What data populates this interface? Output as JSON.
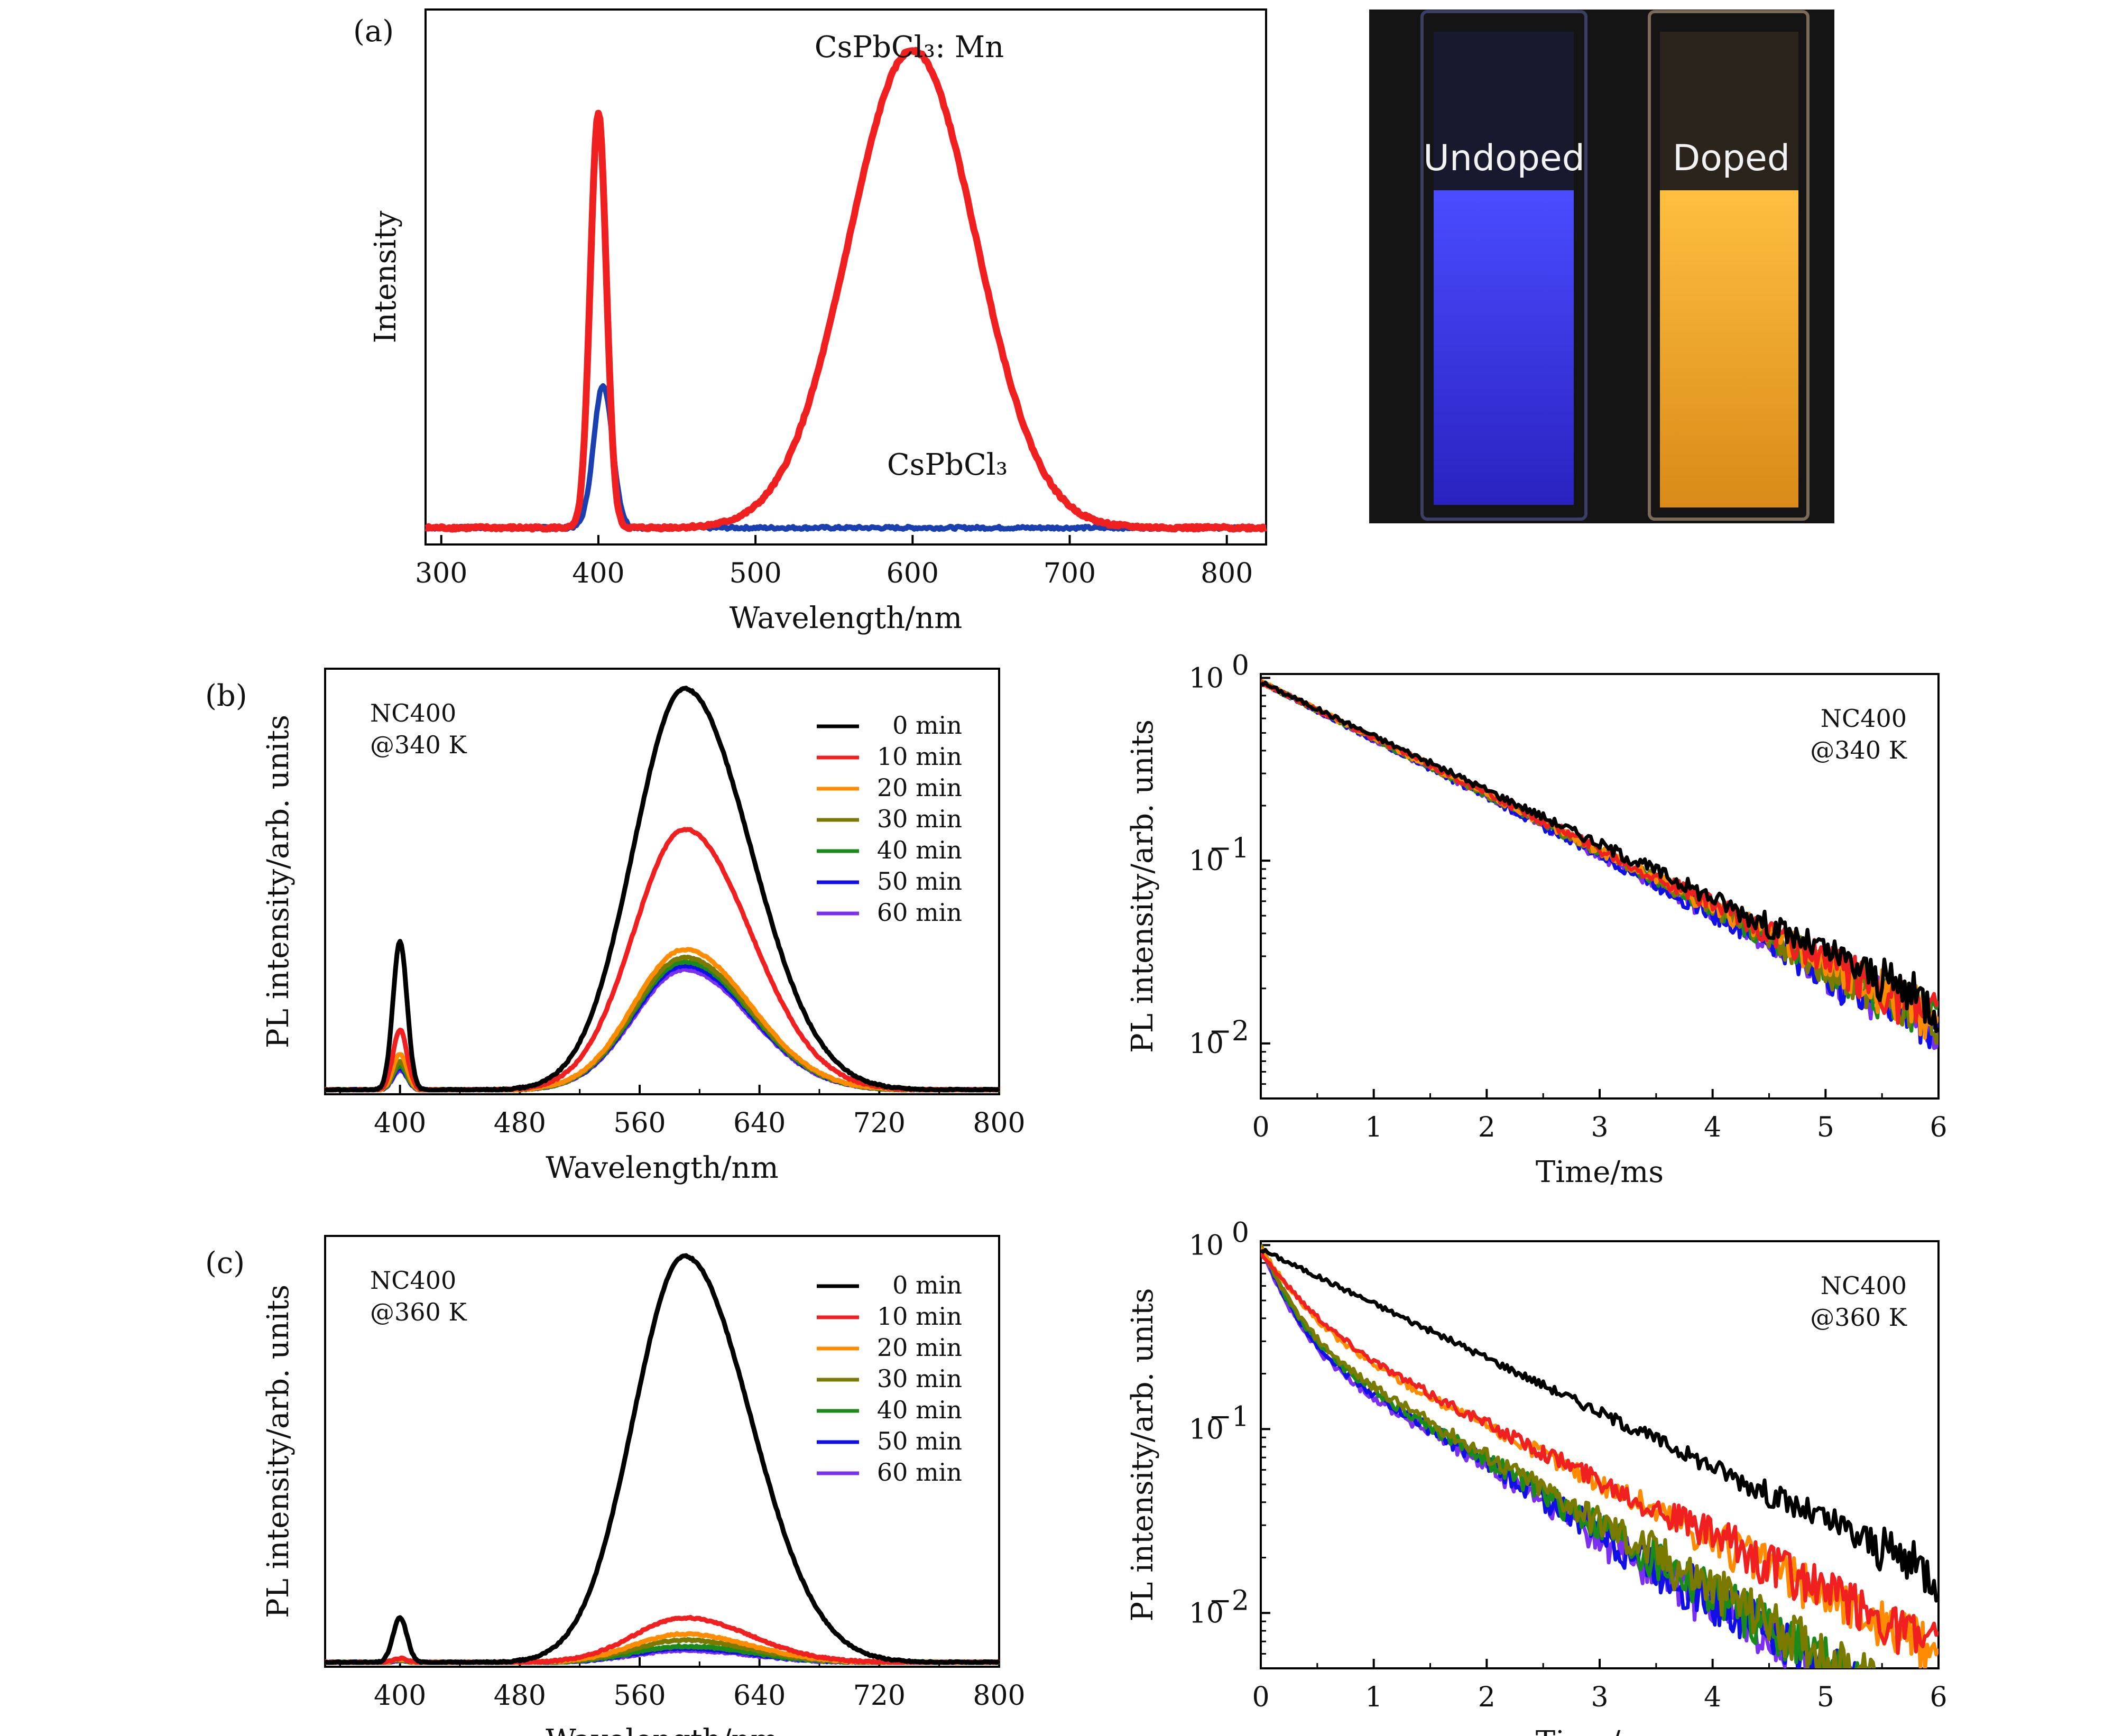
{
  "panel_labels": {
    "a": "(a)",
    "b": "(b)",
    "c": "(c)"
  },
  "photo": {
    "undoped_label": "Undoped",
    "doped_label": "Doped",
    "undoped_color": "#3b3cf0",
    "doped_color": "#f2a22a"
  },
  "common": {
    "series_names": [
      "0 min",
      "10 min",
      "20 min",
      "30 min",
      "40 min",
      "50 min",
      "60 min"
    ],
    "series_colors": [
      "#000000",
      "#f02020",
      "#ff8c00",
      "#7a7a00",
      "#1a8a1a",
      "#1010e6",
      "#7b2ff0"
    ]
  },
  "chart_data": [
    {
      "id": "a",
      "type": "line",
      "xlabel": "Wavelength/nm",
      "ylabel": "Intensity",
      "xlim": [
        290,
        825
      ],
      "ylim": [
        0,
        1.1
      ],
      "xticks": [
        "300",
        "400",
        "500",
        "600",
        "700",
        "800"
      ],
      "annotations": {
        "doped": "CsPbCl₃: Mn",
        "undoped": "CsPbCl₃"
      },
      "series": [
        {
          "name": "CsPbCl₃: Mn",
          "color": "#f02020",
          "peaks": [
            {
              "center": 400,
              "fwhm": 12,
              "height": 0.87
            },
            {
              "center": 600,
              "fwhm": 95,
              "height": 1.0
            }
          ]
        },
        {
          "name": "CsPbCl₃",
          "color": "#1a3fb0",
          "peaks": [
            {
              "center": 403,
              "fwhm": 14,
              "height": 0.3
            }
          ]
        }
      ]
    },
    {
      "id": "b_pl",
      "type": "line",
      "xlabel": "Wavelength/nm",
      "ylabel": "PL intensity/arb. units",
      "xlim": [
        350,
        800
      ],
      "ylim": [
        0,
        1.05
      ],
      "xticks": [
        "400",
        "480",
        "560",
        "640",
        "720",
        "800"
      ],
      "annotation": [
        "NC400",
        "@340 K"
      ],
      "series": [
        {
          "name": "0 min",
          "peak400": 0.37,
          "peak590": 1.0
        },
        {
          "name": "10 min",
          "peak400": 0.15,
          "peak590": 0.65
        },
        {
          "name": "20 min",
          "peak400": 0.09,
          "peak590": 0.35
        },
        {
          "name": "30 min",
          "peak400": 0.07,
          "peak590": 0.33
        },
        {
          "name": "40 min",
          "peak400": 0.06,
          "peak590": 0.32
        },
        {
          "name": "50 min",
          "peak400": 0.055,
          "peak590": 0.31
        },
        {
          "name": "60 min",
          "peak400": 0.05,
          "peak590": 0.3
        }
      ]
    },
    {
      "id": "b_decay",
      "type": "line",
      "xlabel": "Time/ms",
      "ylabel": "PL intensity/arb. units",
      "xlim": [
        0,
        6
      ],
      "ylim": [
        0.005,
        1.05
      ],
      "yscale": "log",
      "xticks": [
        "0",
        "1",
        "2",
        "3",
        "4",
        "5",
        "6"
      ],
      "annotation": [
        "NC400",
        "@340 K"
      ],
      "series": [
        {
          "name": "0 min",
          "end_value_6ms": 0.017
        },
        {
          "name": "10 min",
          "end_value_6ms": 0.015
        },
        {
          "name": "20 min",
          "end_value_6ms": 0.0145
        },
        {
          "name": "30 min",
          "end_value_6ms": 0.014
        },
        {
          "name": "40 min",
          "end_value_6ms": 0.014
        },
        {
          "name": "50 min",
          "end_value_6ms": 0.013
        },
        {
          "name": "60 min",
          "end_value_6ms": 0.013
        }
      ]
    },
    {
      "id": "c_pl",
      "type": "line",
      "xlabel": "Wavelength/nm",
      "ylabel": "PL intensity/arb. units",
      "xlim": [
        350,
        800
      ],
      "ylim": [
        0,
        1.05
      ],
      "xticks": [
        "400",
        "480",
        "560",
        "640",
        "720",
        "800"
      ],
      "annotation": [
        "NC400",
        "@360 K"
      ],
      "series": [
        {
          "name": "0 min",
          "peak400": 0.11,
          "peak590": 1.0
        },
        {
          "name": "10 min",
          "peak400": 0.01,
          "peak590": 0.11
        },
        {
          "name": "20 min",
          "peak400": 0.008,
          "peak590": 0.07
        },
        {
          "name": "30 min",
          "peak400": 0.007,
          "peak590": 0.055
        },
        {
          "name": "40 min",
          "peak400": 0.006,
          "peak590": 0.04
        },
        {
          "name": "50 min",
          "peak400": 0.006,
          "peak590": 0.035
        },
        {
          "name": "60 min",
          "peak400": 0.005,
          "peak590": 0.03
        }
      ]
    },
    {
      "id": "c_decay",
      "type": "line",
      "xlabel": "Time/ms",
      "ylabel": "PL intensity/arb. units",
      "xlim": [
        0,
        6
      ],
      "ylim": [
        0.005,
        1.05
      ],
      "yscale": "log",
      "xticks": [
        "0",
        "1",
        "2",
        "3",
        "4",
        "5",
        "6"
      ],
      "annotation": [
        "NC400",
        "@360 K"
      ],
      "series": [
        {
          "name": "0 min",
          "end_value_6ms": 0.017
        },
        {
          "name": "10 min",
          "end_value_6ms": 0.0058
        },
        {
          "name": "20 min",
          "end_value_5.4ms": 0.005
        },
        {
          "name": "30 min",
          "end_value_4.7ms": 0.005
        },
        {
          "name": "40 min",
          "end_value_4.6ms": 0.005
        },
        {
          "name": "50 min",
          "end_value_4.5ms": 0.005
        },
        {
          "name": "60 min",
          "end_value_4.4ms": 0.005
        }
      ]
    }
  ]
}
